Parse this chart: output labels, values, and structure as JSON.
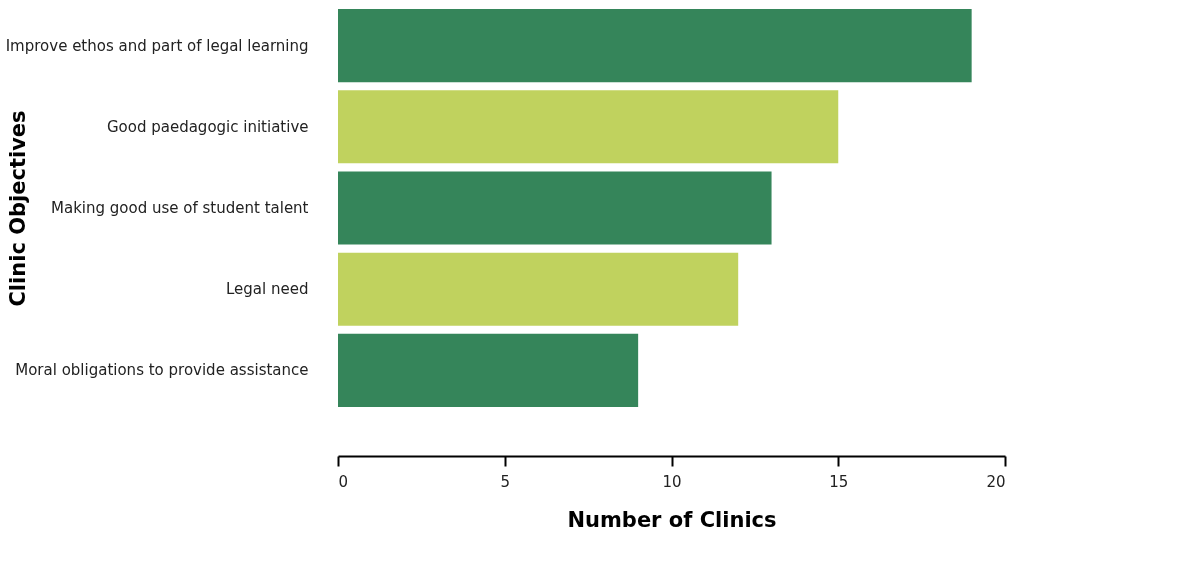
{
  "chart_data": {
    "type": "bar",
    "orientation": "horizontal",
    "xlabel": "Number of Clinics",
    "ylabel": "Clinic Objectives",
    "categories": [
      "Improve ethos and part of legal learning",
      "Good paedagogic initiative",
      "Making good use of student talent",
      "Legal need",
      "Moral obligations to provide assistance"
    ],
    "values": [
      19,
      15,
      13,
      12,
      9
    ],
    "colors": [
      "#35855a",
      "#c0d25e",
      "#35855a",
      "#c0d25e",
      "#35855a"
    ],
    "xlim": [
      0,
      20
    ],
    "xticks": [
      0,
      5,
      10,
      15,
      20
    ],
    "grid": false
  }
}
